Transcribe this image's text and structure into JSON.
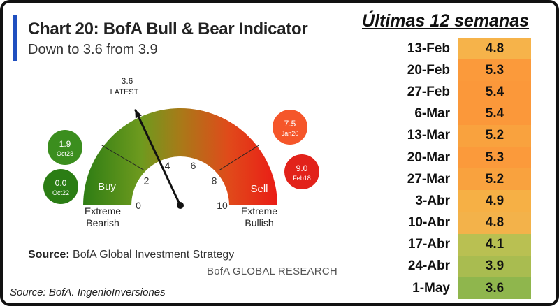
{
  "header": {
    "title": "Chart 20: BofA Bull & Bear Indicator",
    "subtitle": "Down to 3.6 from 3.9"
  },
  "source": {
    "label": "Source:",
    "text": "BofA Global Investment Strategy"
  },
  "brand": "BofA GLOBAL RESEARCH",
  "credit": "Source: BofA. IngenioInversiones",
  "chart_data": [
    {
      "type": "gauge",
      "title": "Chart 20: BofA Bull & Bear Indicator",
      "subtitle": "Down to 3.6 from 3.9",
      "range": [
        0,
        10
      ],
      "tick_labels": [
        "0",
        "2",
        "4",
        "6",
        "8",
        "10"
      ],
      "value": 3.6,
      "value_label": "3.6",
      "value_caption": "LATEST",
      "zones": [
        {
          "label": "Buy",
          "from": 0,
          "to": 2,
          "color": "#2e7d14"
        },
        {
          "label": "Sell",
          "from": 8,
          "to": 10,
          "color": "#e52219"
        }
      ],
      "extreme_labels": {
        "left": [
          "Extreme",
          "Bearish"
        ],
        "right": [
          "Extreme",
          "Bullish"
        ]
      },
      "markers": [
        {
          "value": "1.9",
          "date": "Oct23",
          "color": "#3b8e1e"
        },
        {
          "value": "0.0",
          "date": "Oct22",
          "color": "#2b7d14"
        },
        {
          "value": "7.5",
          "date": "Jan20",
          "color": "#f5562a"
        },
        {
          "value": "9.0",
          "date": "Feb18",
          "color": "#e2221a"
        }
      ]
    },
    {
      "type": "table",
      "title": "Últimas 12 semanas",
      "categories": [
        "13-Feb",
        "20-Feb",
        "27-Feb",
        "6-Mar",
        "13-Mar",
        "20-Mar",
        "27-Mar",
        "3-Abr",
        "10-Abr",
        "17-Abr",
        "24-Abr",
        "1-May"
      ],
      "values": [
        4.8,
        5.3,
        5.4,
        5.4,
        5.2,
        5.3,
        5.2,
        4.9,
        4.8,
        4.1,
        3.9,
        3.6
      ],
      "labels": [
        "4.8",
        "5.3",
        "5.4",
        "5.4",
        "5.2",
        "5.3",
        "5.2",
        "4.9",
        "4.8",
        "4.1",
        "3.9",
        "3.6"
      ],
      "colors": [
        "#f6b34a",
        "#fb9a3b",
        "#fb983a",
        "#fb983a",
        "#f9a23e",
        "#fb9a3b",
        "#f9a23e",
        "#f6b045",
        "#f3b24a",
        "#b9c052",
        "#a9bc50",
        "#8fb64d"
      ]
    }
  ]
}
